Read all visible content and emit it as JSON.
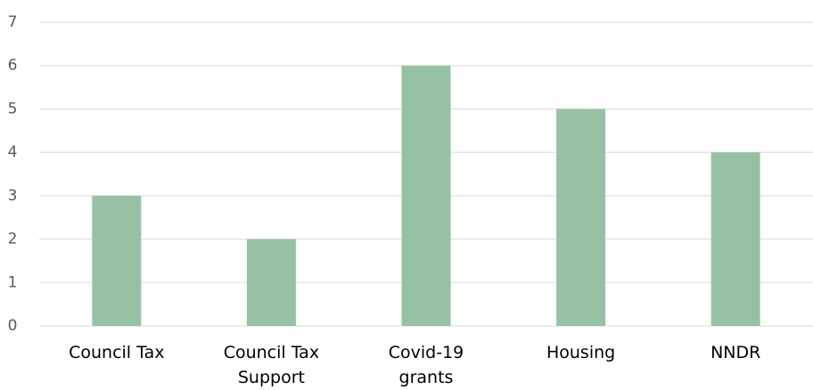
{
  "chart_data": {
    "type": "bar",
    "title": "",
    "xlabel": "",
    "ylabel": "",
    "categories": [
      [
        "Council Tax"
      ],
      [
        "Council Tax",
        "Support"
      ],
      [
        "Covid-19",
        "grants"
      ],
      [
        "Housing"
      ],
      [
        "NNDR"
      ]
    ],
    "values": [
      3,
      2,
      6,
      5,
      4
    ],
    "ylim": [
      0,
      7
    ],
    "yticks": [
      0,
      1,
      2,
      3,
      4,
      5,
      6,
      7
    ],
    "grid": true,
    "legend": "none",
    "bar_color": "#96c1a5"
  }
}
